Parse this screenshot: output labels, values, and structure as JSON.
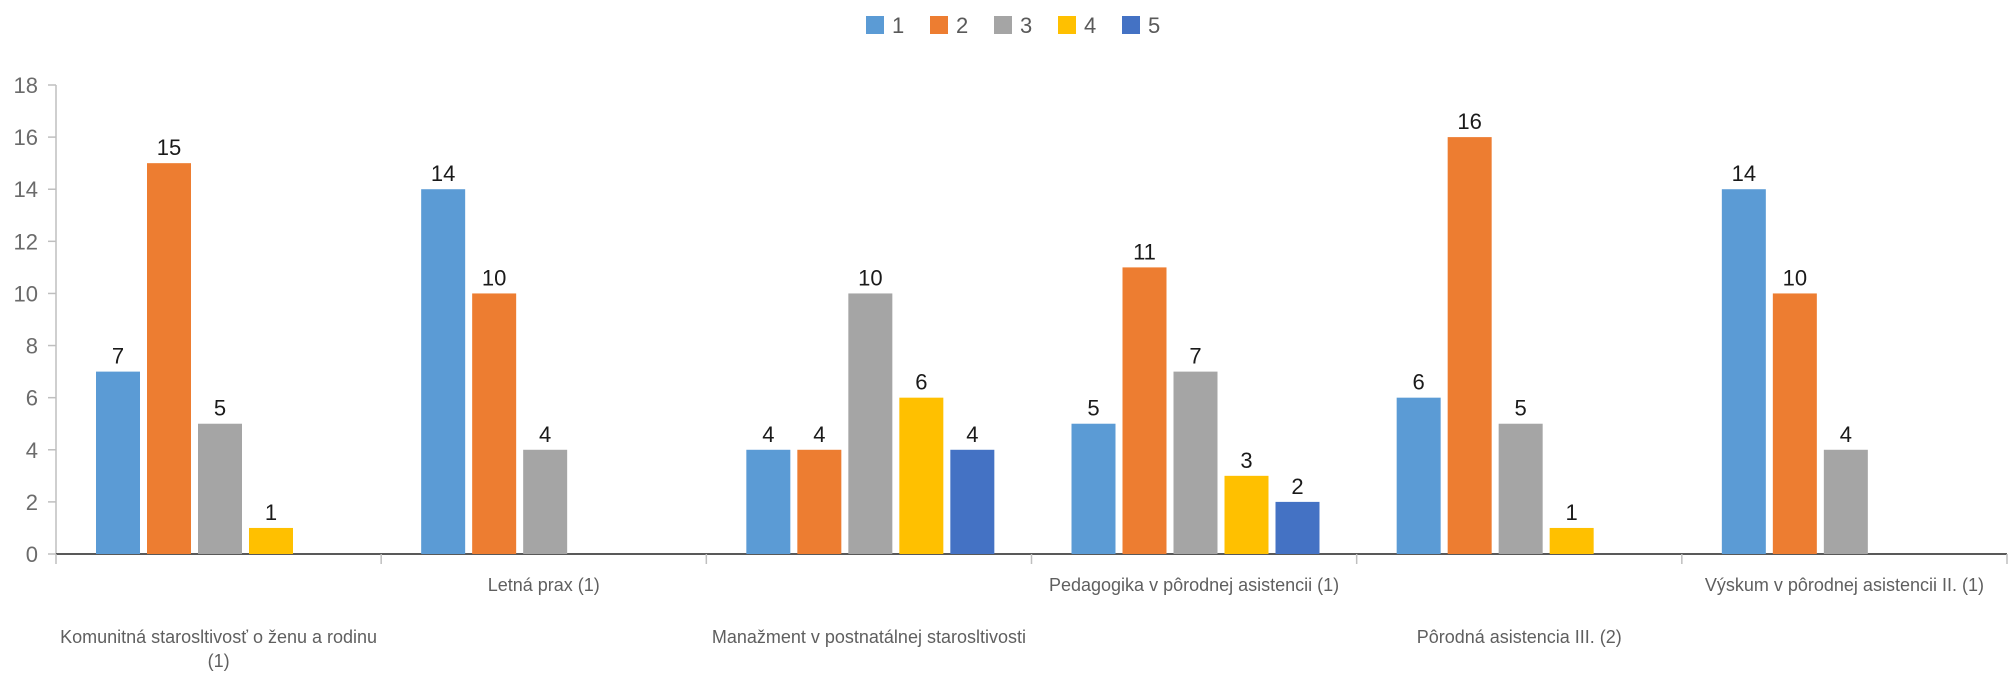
{
  "chart_data": {
    "type": "bar",
    "title": "",
    "xlabel": "",
    "ylabel": "",
    "ylim": [
      0,
      18
    ],
    "yticks": [
      0,
      2,
      4,
      6,
      8,
      10,
      12,
      14,
      16,
      18
    ],
    "grid": false,
    "legend_position": "top-center",
    "categories": [
      "Komunitná starosltivosť o ženu a rodinu (1)",
      "Letná prax (1)",
      "Manažment v postnatálnej starosltivosti",
      "Pedagogika v pôrodnej asistencii (1)",
      "Pôrodná asistencia III. (2)",
      "Výskum v pôrodnej asistencii II. (1)"
    ],
    "series": [
      {
        "name": "1",
        "color": "#5b9bd5",
        "values": [
          7,
          14,
          4,
          5,
          6,
          14
        ]
      },
      {
        "name": "2",
        "color": "#ed7d31",
        "values": [
          15,
          10,
          4,
          11,
          16,
          10
        ]
      },
      {
        "name": "3",
        "color": "#a5a5a5",
        "values": [
          5,
          4,
          10,
          7,
          5,
          4
        ]
      },
      {
        "name": "4",
        "color": "#ffc000",
        "values": [
          1,
          null,
          6,
          3,
          1,
          null
        ]
      },
      {
        "name": "5",
        "color": "#4472c4",
        "values": [
          null,
          null,
          4,
          2,
          null,
          null
        ]
      }
    ]
  }
}
